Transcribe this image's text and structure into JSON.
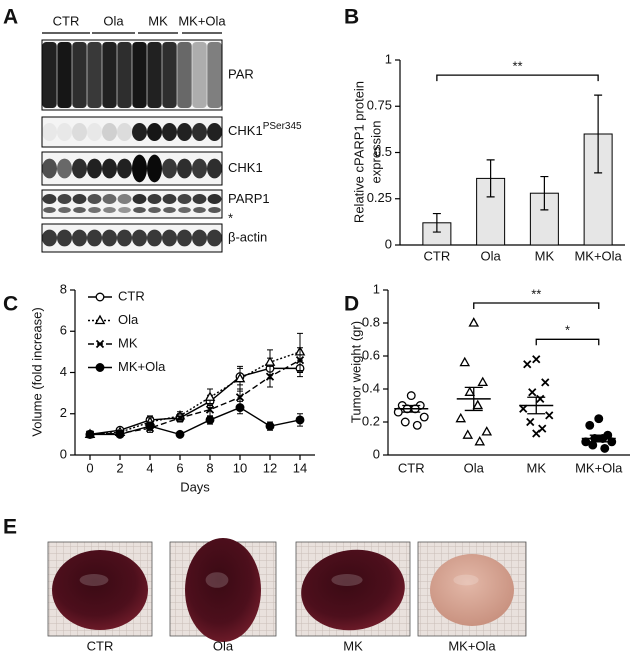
{
  "chart_data": [
    {
      "type": "bar",
      "panel": "B",
      "ylabel": [
        "Relative cPARP1 protein",
        "expression"
      ],
      "categories": [
        "CTR",
        "Ola",
        "MK",
        "MK+Ola"
      ],
      "values": [
        0.12,
        0.36,
        0.28,
        0.6
      ],
      "errors": [
        0.05,
        0.1,
        0.09,
        0.21
      ],
      "color": "#e6e6e6",
      "ylim": [
        0,
        1
      ],
      "yticks": [
        0,
        0.25,
        0.5,
        0.75,
        1
      ],
      "annotations": [
        {
          "text": "**",
          "from": "CTR",
          "to": "MK+Ola"
        }
      ]
    },
    {
      "type": "line",
      "panel": "C",
      "xlabel": "Days",
      "ylabel": "Volume (fold increase)",
      "x": [
        0,
        2,
        4,
        6,
        8,
        10,
        12,
        14
      ],
      "xlim": [
        -1,
        15
      ],
      "xticks": [
        0,
        2,
        4,
        6,
        8,
        10,
        12,
        14
      ],
      "ylim": [
        0,
        8
      ],
      "yticks": [
        0,
        2,
        4,
        6,
        8
      ],
      "legend": "upper left",
      "series": [
        {
          "name": "CTR",
          "color": "#000000",
          "marker": "circle-open",
          "dash": "solid",
          "values": [
            1,
            1.2,
            1.7,
            1.8,
            2.6,
            3.8,
            4.2,
            4.2
          ],
          "errors": [
            0.1,
            0.1,
            0.2,
            0.2,
            0.3,
            0.4,
            0.5,
            0.4
          ]
        },
        {
          "name": "Ola",
          "color": "#000000",
          "marker": "triangle-open",
          "dash": "dotted",
          "values": [
            1,
            1.1,
            1.6,
            1.9,
            2.8,
            3.7,
            4.5,
            5.0
          ],
          "errors": [
            0.1,
            0.1,
            0.2,
            0.2,
            0.4,
            0.6,
            0.6,
            0.9
          ]
        },
        {
          "name": "MK",
          "color": "#000000",
          "marker": "x",
          "dash": "dashed",
          "values": [
            1,
            1.05,
            1.3,
            1.8,
            2.2,
            2.8,
            3.8,
            4.6
          ],
          "errors": [
            0.1,
            0.1,
            0.2,
            0.2,
            0.3,
            0.4,
            0.5,
            0.6
          ]
        },
        {
          "name": "MK+Ola",
          "color": "#000000",
          "marker": "circle-filled",
          "dash": "solid",
          "values": [
            1,
            1.0,
            1.4,
            1.0,
            1.7,
            2.3,
            1.4,
            1.7
          ],
          "errors": [
            0.1,
            0.1,
            0.2,
            0.1,
            0.2,
            0.3,
            0.2,
            0.3
          ]
        }
      ]
    },
    {
      "type": "dotplot",
      "panel": "D",
      "ylabel": "Tumor weight (gr)",
      "ylim": [
        0,
        1
      ],
      "yticks": [
        0,
        0.2,
        0.4,
        0.6,
        0.8,
        1
      ],
      "series": [
        {
          "name": "CTR",
          "color": "#000000",
          "marker": "circle-open",
          "values": [
            0.36,
            0.3,
            0.3,
            0.28,
            0.28,
            0.26,
            0.23,
            0.2,
            0.18
          ],
          "mean": 0.28,
          "sem": 0.02
        },
        {
          "name": "Ola",
          "color": "#000000",
          "marker": "triangle-open",
          "values": [
            0.8,
            0.56,
            0.44,
            0.38,
            0.3,
            0.22,
            0.14,
            0.12,
            0.08
          ],
          "mean": 0.34,
          "sem": 0.07
        },
        {
          "name": "MK",
          "color": "#000000",
          "marker": "x",
          "values": [
            0.58,
            0.55,
            0.44,
            0.38,
            0.34,
            0.28,
            0.24,
            0.2,
            0.16,
            0.13
          ],
          "mean": 0.3,
          "sem": 0.05
        },
        {
          "name": "MK+Ola",
          "color": "#000000",
          "marker": "circle-filled",
          "values": [
            0.22,
            0.18,
            0.12,
            0.1,
            0.1,
            0.08,
            0.08,
            0.06,
            0.04
          ],
          "mean": 0.1,
          "sem": 0.02
        }
      ],
      "annotations": [
        {
          "text": "**",
          "from": "Ola",
          "to": "MK+Ola"
        },
        {
          "text": "*",
          "from": "MK",
          "to": "MK+Ola"
        }
      ]
    }
  ],
  "blot": {
    "panel": "A",
    "lanes": [
      "CTR",
      "Ola",
      "MK",
      "MK+Ola"
    ],
    "rows": [
      "PAR",
      {
        "text": "CHK1",
        "sup": "PSer345"
      },
      "CHK1",
      {
        "text": "PARP1",
        "note": "*"
      },
      "β-actin"
    ]
  },
  "photos": {
    "panel": "E",
    "labels": [
      "CTR",
      "Ola",
      "MK",
      "MK+Ola"
    ]
  }
}
